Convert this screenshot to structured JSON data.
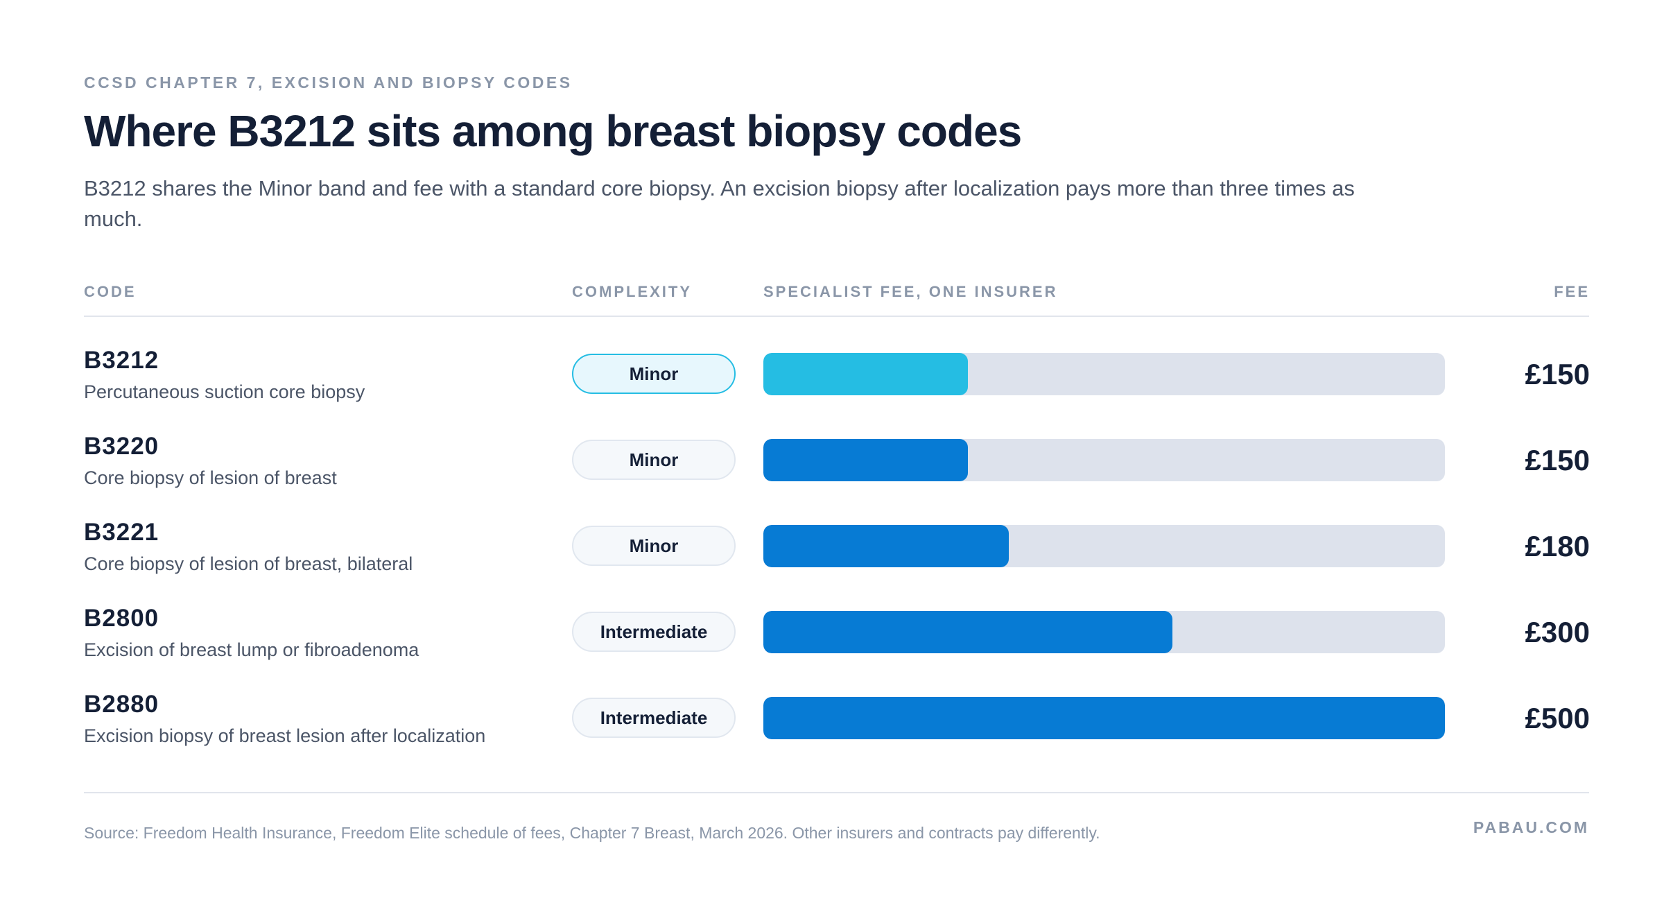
{
  "header": {
    "eyebrow": "CCSD CHAPTER 7, EXCISION AND BIOPSY CODES",
    "title": "Where B3212 sits among breast biopsy codes",
    "subtitle": "B3212 shares the Minor band and fee with a standard core biopsy. An excision biopsy after localization pays more than three times as much."
  },
  "columns": {
    "code": "CODE",
    "complexity": "COMPLEXITY",
    "bar": "SPECIALIST FEE, ONE INSURER",
    "fee": "FEE"
  },
  "colors": {
    "highlight_bar": "#25bde3",
    "bar": "#077bd4",
    "track": "#dde2ec",
    "highlight_pill_border": "#25bde3",
    "highlight_pill_bg": "#e7f7fd"
  },
  "chart_data": {
    "type": "bar",
    "orientation": "horizontal",
    "title": "Where B3212 sits among breast biopsy codes",
    "xlabel": "SPECIALIST FEE, ONE INSURER",
    "xlim": [
      0,
      500
    ],
    "unit": "£",
    "highlight": "B3212",
    "categories": [
      "B3212",
      "B3220",
      "B3221",
      "B2800",
      "B2880"
    ],
    "values": [
      150,
      150,
      180,
      300,
      500
    ],
    "rows": [
      {
        "code": "B3212",
        "desc": "Percutaneous suction core biopsy",
        "complexity": "Minor",
        "fee": 150,
        "fee_label": "£150",
        "highlight": true
      },
      {
        "code": "B3220",
        "desc": "Core biopsy of lesion of breast",
        "complexity": "Minor",
        "fee": 150,
        "fee_label": "£150",
        "highlight": false
      },
      {
        "code": "B3221",
        "desc": "Core biopsy of lesion of breast, bilateral",
        "complexity": "Minor",
        "fee": 180,
        "fee_label": "£180",
        "highlight": false
      },
      {
        "code": "B2800",
        "desc": "Excision of breast lump or fibroadenoma",
        "complexity": "Intermediate",
        "fee": 300,
        "fee_label": "£300",
        "highlight": false
      },
      {
        "code": "B2880",
        "desc": "Excision biopsy of breast lesion after localization",
        "complexity": "Intermediate",
        "fee": 500,
        "fee_label": "£500",
        "highlight": false
      }
    ]
  },
  "footer": {
    "source": "Source: Freedom Health Insurance, Freedom Elite schedule of fees, Chapter 7 Breast, March 2026. Other insurers and contracts pay differently.",
    "brand": "PABAU.COM"
  }
}
